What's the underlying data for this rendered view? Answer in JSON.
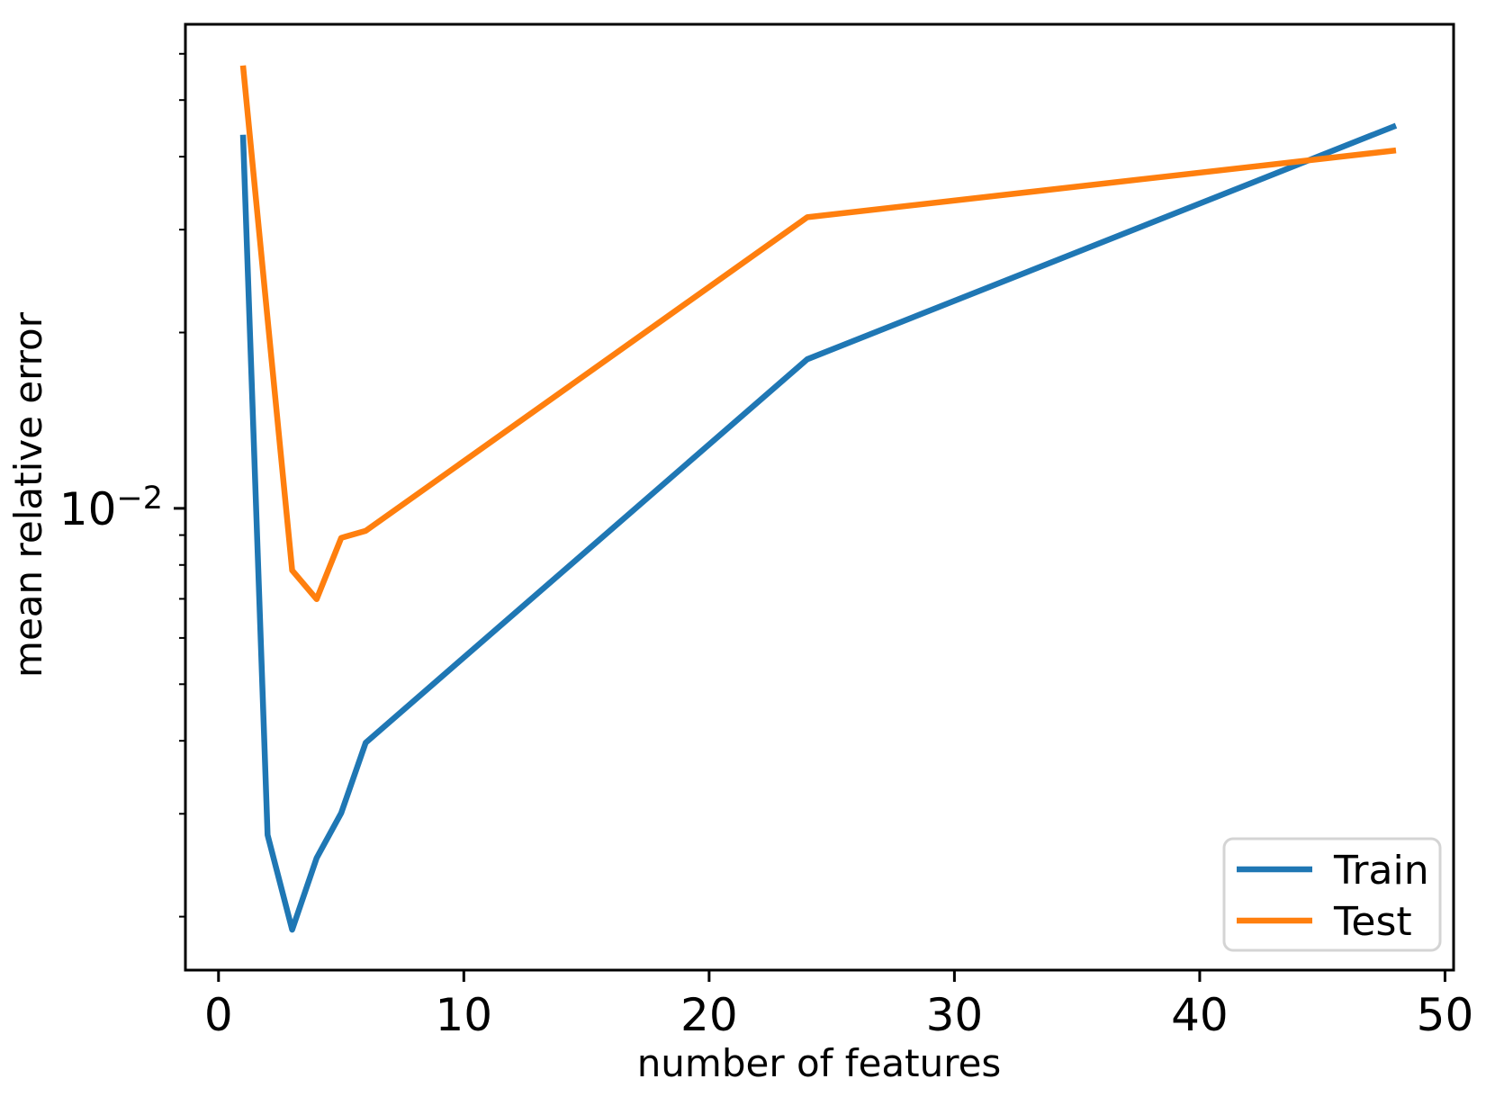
{
  "figure": {
    "background": "#ffffff"
  },
  "chart_data": {
    "type": "line",
    "title": "",
    "xlabel": "number of features",
    "ylabel": "mean relative error",
    "x": [
      1,
      2,
      3,
      4,
      5,
      6,
      24,
      48
    ],
    "series": [
      {
        "name": "Train",
        "color": "#1f77b4",
        "values": [
          0.0436,
          0.00276,
          0.0019,
          0.00252,
          0.00301,
          0.00397,
          0.018,
          0.0452
        ]
      },
      {
        "name": "Test",
        "color": "#ff7f0e",
        "values": [
          0.0573,
          0.0211,
          0.00783,
          0.00699,
          0.0089,
          0.00915,
          0.0315,
          0.041
        ]
      }
    ],
    "x_ticks": [
      0,
      10,
      20,
      30,
      40,
      50
    ],
    "y_scale": "log",
    "y_major_tick": {
      "value": 0.01,
      "base": "10",
      "exponent": "−2"
    },
    "xlim": [
      -1.35,
      50.35
    ],
    "ylim": [
      0.00162,
      0.0674
    ],
    "grid": false,
    "legend": {
      "position": "lower right",
      "entries": [
        "Train",
        "Test"
      ]
    },
    "axis_color": "#000000",
    "legend_border_color": "#d4d4d4"
  }
}
